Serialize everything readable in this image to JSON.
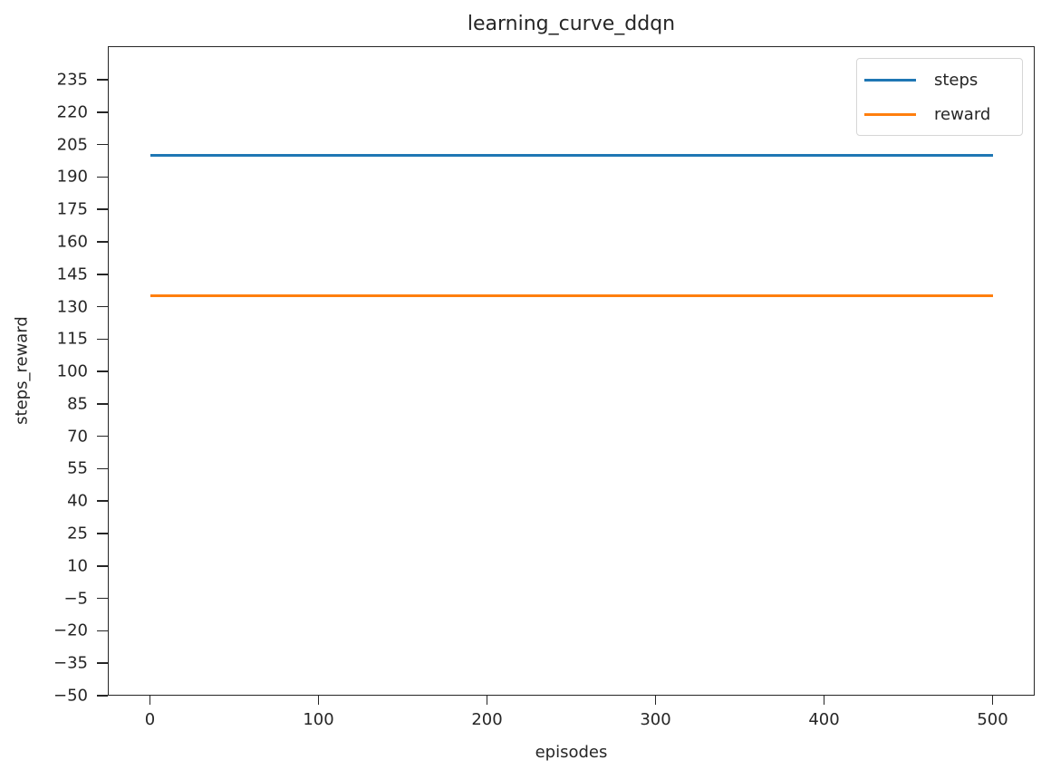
{
  "chart_data": {
    "type": "line",
    "title": "learning_curve_ddqn",
    "xlabel": "episodes",
    "ylabel": "steps_reward",
    "xlim": [
      -25,
      525
    ],
    "ylim": [
      -50,
      250.5
    ],
    "x_ticks": [
      0,
      100,
      200,
      300,
      400,
      500
    ],
    "y_ticks": [
      235,
      220,
      205,
      190,
      175,
      160,
      145,
      130,
      115,
      100,
      85,
      70,
      55,
      40,
      25,
      10,
      -5,
      -20,
      -35,
      -50
    ],
    "y_tick_labels": [
      "235",
      "220",
      "205",
      "190",
      "175",
      "160",
      "145",
      "130",
      "115",
      "100",
      "85",
      "70",
      "55",
      "40",
      "25",
      "10",
      "−5",
      "−20",
      "−35",
      "−50"
    ],
    "x_tick_labels": [
      "0",
      "100",
      "200",
      "300",
      "400",
      "500"
    ],
    "grid": false,
    "legend_position": "upper right",
    "x": [
      0,
      500
    ],
    "series": [
      {
        "name": "steps",
        "color": "#1f77b4",
        "values": [
          200,
          200
        ]
      },
      {
        "name": "reward",
        "color": "#ff7f0e",
        "values": [
          135,
          135
        ]
      }
    ]
  }
}
